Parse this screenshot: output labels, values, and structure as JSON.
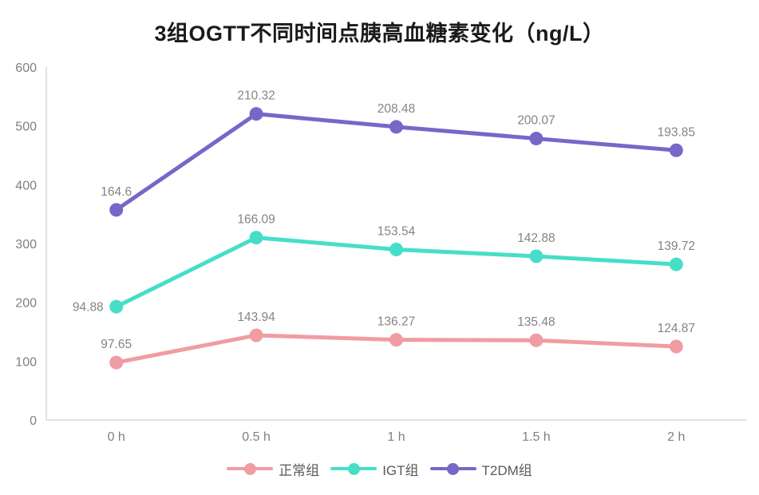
{
  "title": "3组OGTT不同时间点胰高血糖素变化（ng/L）",
  "chart_data": {
    "type": "line",
    "stacked": true,
    "title": "3组OGTT不同时间点胰高血糖素变化（ng/L）",
    "categories": [
      "0 h",
      "0.5 h",
      "1 h",
      "1.5 h",
      "2 h"
    ],
    "series": [
      {
        "name": "正常组",
        "color": "#F09CA3",
        "values": [
          97.65,
          143.94,
          136.27,
          135.48,
          124.87
        ]
      },
      {
        "name": "IGT组",
        "color": "#47DEC8",
        "values": [
          94.88,
          166.09,
          153.54,
          142.88,
          139.72
        ]
      },
      {
        "name": "T2DM组",
        "color": "#7568C8",
        "values": [
          164.6,
          210.32,
          208.48,
          200.07,
          193.85
        ]
      }
    ],
    "ylim": [
      0,
      600
    ],
    "yticks": [
      0,
      100,
      200,
      300,
      400,
      500,
      600
    ],
    "grid": false,
    "data_labels": true,
    "label_overrides": [
      {
        "series": 1,
        "point": 0,
        "position": "left"
      }
    ],
    "legend_position": "bottom",
    "colors": {
      "tick_text": "#808080",
      "data_label_text": "#848484",
      "axis_line": "#d9d9d9",
      "title_text": "#1a1a1a",
      "legend_text": "#595959",
      "background": "#ffffff"
    }
  }
}
